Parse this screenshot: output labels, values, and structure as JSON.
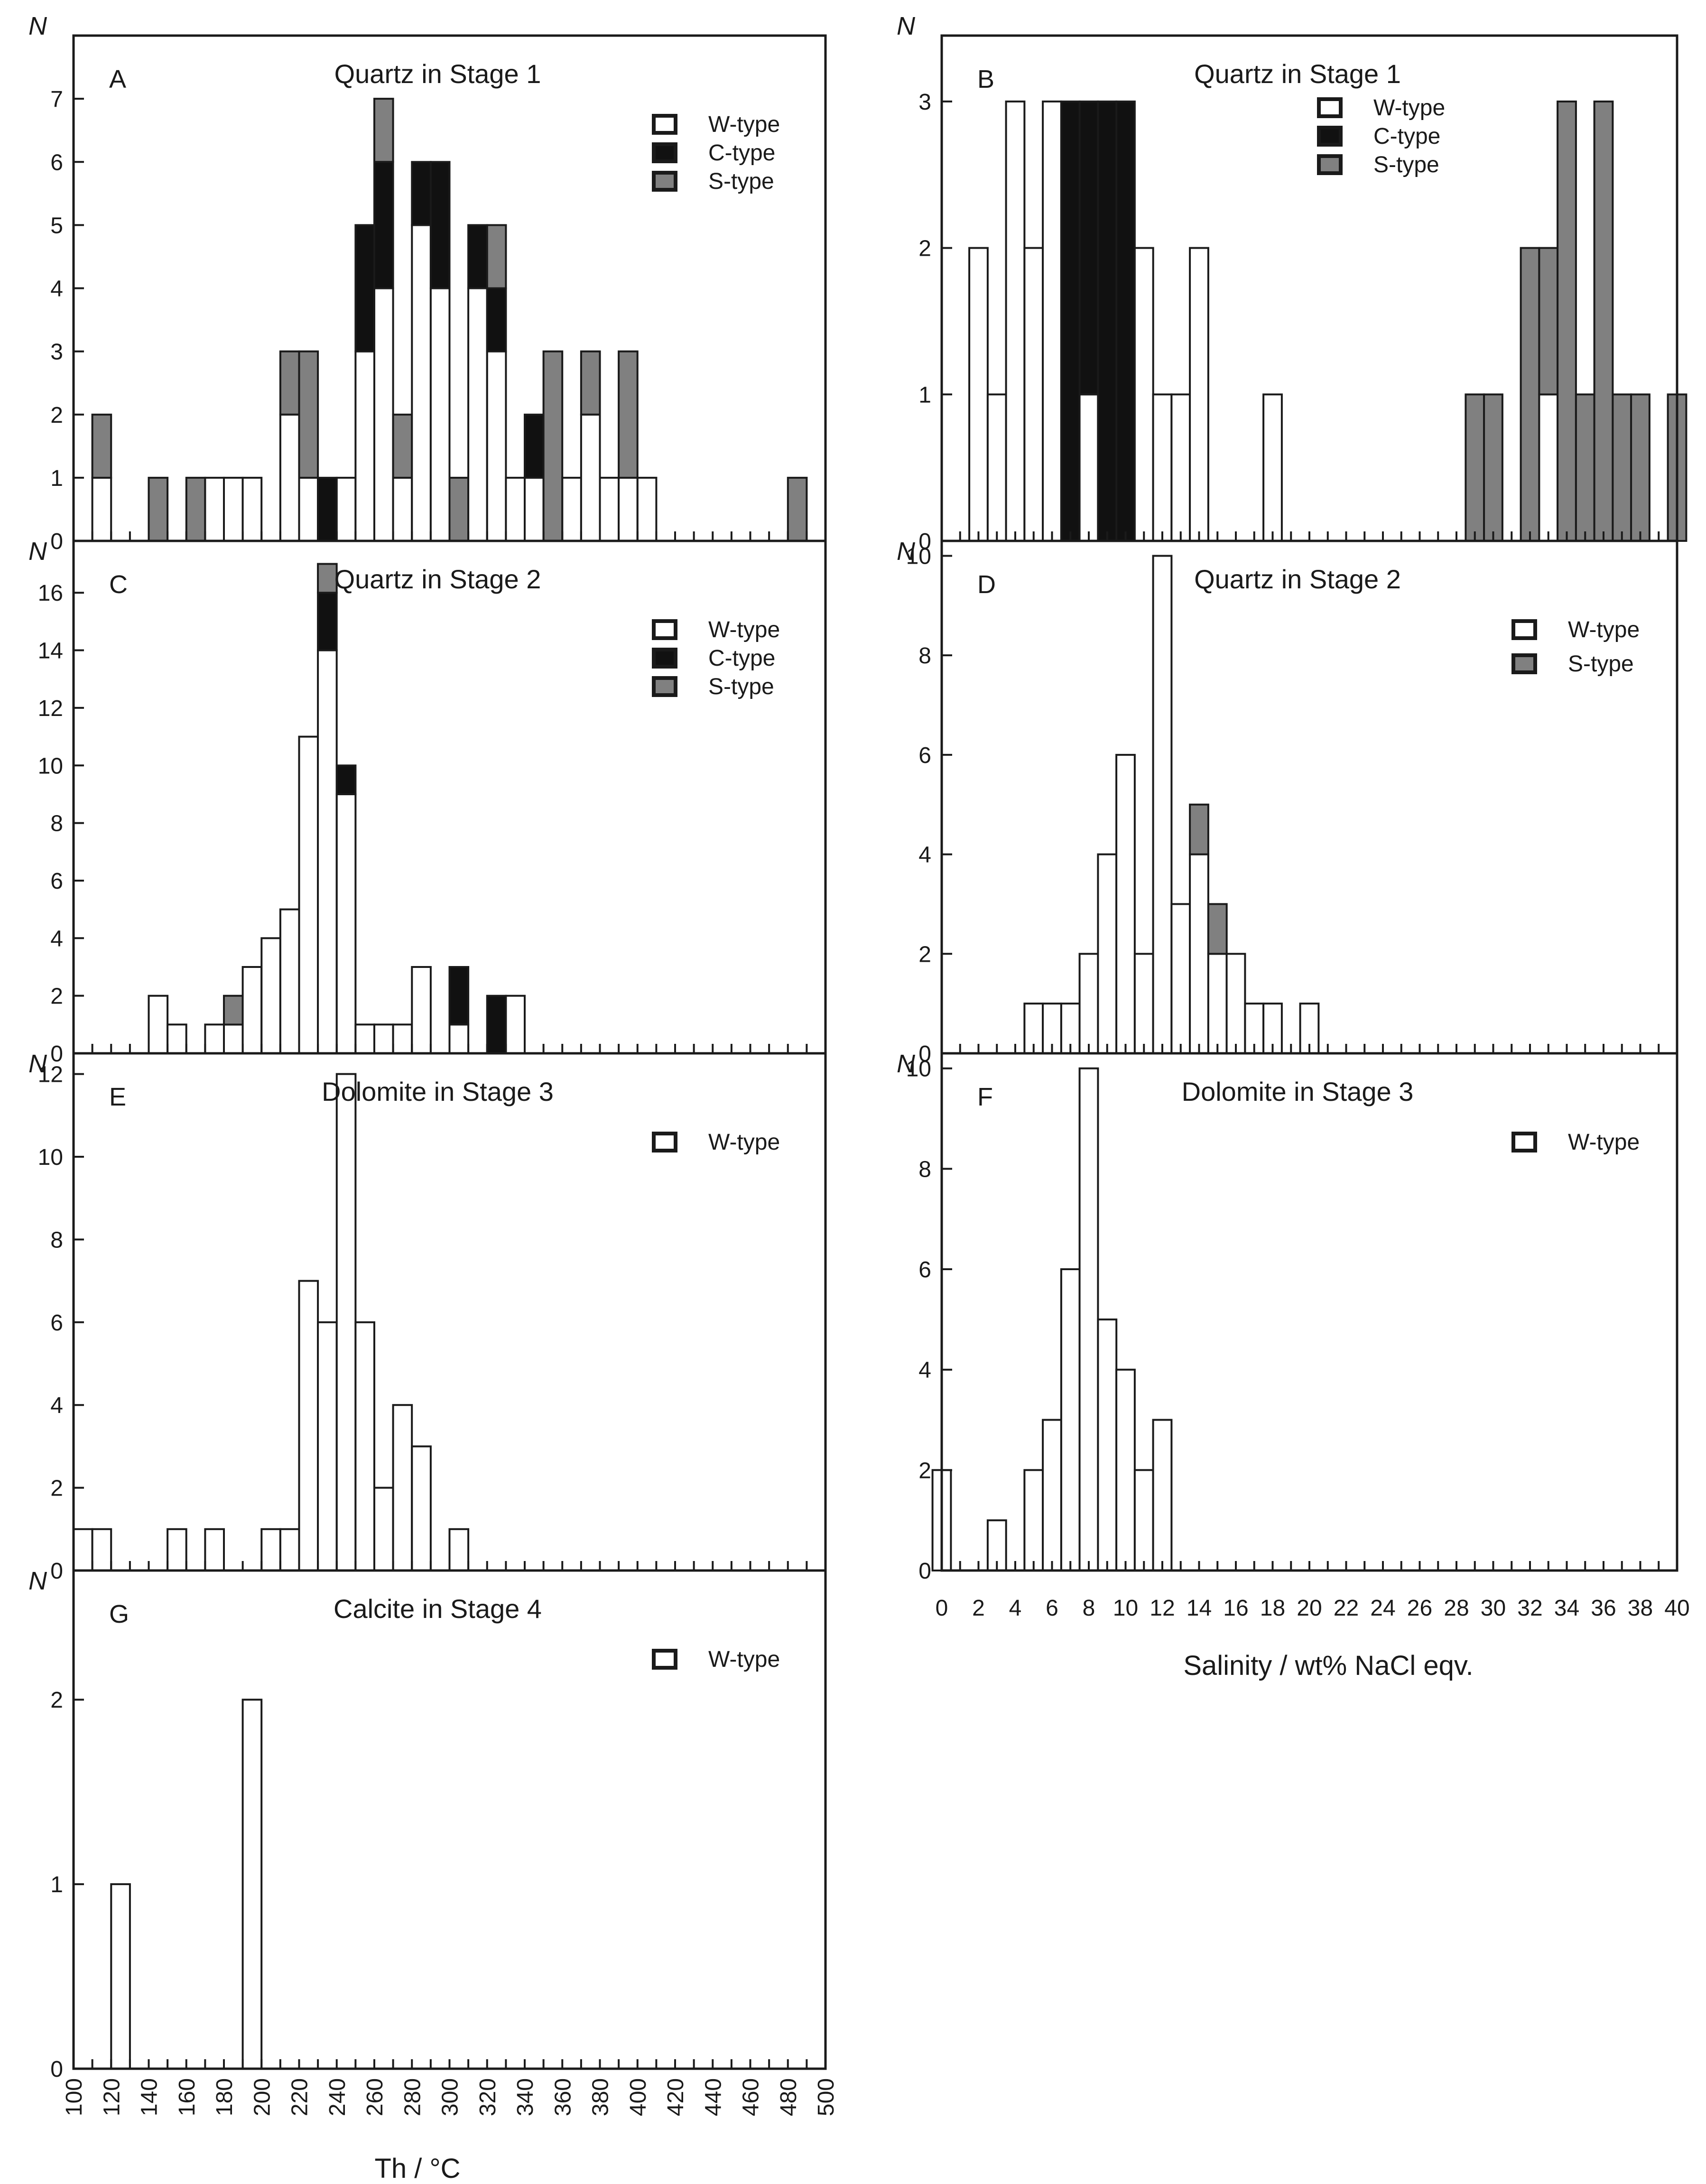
{
  "colors": {
    "W-type": "#ffffff",
    "C-type": "#111111",
    "S-type": "#808080",
    "axis": "#1a1a1a"
  },
  "figure": {
    "th_axis_label": "Th / °C",
    "salinity_axis_label": "Salinity / wt% NaCl eqv.",
    "y_symbol": "N"
  },
  "chart_data": [
    {
      "id": "A",
      "type": "bar",
      "stacked": true,
      "title": "Quartz in Stage 1",
      "xlabel": "Th / °C",
      "ylabel": "N",
      "xlim": [
        100,
        500
      ],
      "bin_width": 10,
      "ylim": [
        0,
        8
      ],
      "yticks": [
        0,
        1,
        2,
        3,
        4,
        5,
        6,
        7
      ],
      "legend": [
        "W-type",
        "C-type",
        "S-type"
      ],
      "bins": [
        {
          "x": 110,
          "W-type": 1,
          "C-type": 0,
          "S-type": 1
        },
        {
          "x": 140,
          "W-type": 0,
          "C-type": 0,
          "S-type": 1
        },
        {
          "x": 160,
          "W-type": 0,
          "C-type": 0,
          "S-type": 1
        },
        {
          "x": 170,
          "W-type": 1,
          "C-type": 0,
          "S-type": 0
        },
        {
          "x": 180,
          "W-type": 1,
          "C-type": 0,
          "S-type": 0
        },
        {
          "x": 190,
          "W-type": 1,
          "C-type": 0,
          "S-type": 0
        },
        {
          "x": 210,
          "W-type": 2,
          "C-type": 0,
          "S-type": 1
        },
        {
          "x": 220,
          "W-type": 1,
          "C-type": 0,
          "S-type": 2
        },
        {
          "x": 230,
          "W-type": 0,
          "C-type": 1,
          "S-type": 0
        },
        {
          "x": 240,
          "W-type": 1,
          "C-type": 0,
          "S-type": 0
        },
        {
          "x": 250,
          "W-type": 3,
          "C-type": 2,
          "S-type": 0
        },
        {
          "x": 260,
          "W-type": 4,
          "C-type": 2,
          "S-type": 1
        },
        {
          "x": 270,
          "W-type": 1,
          "C-type": 0,
          "S-type": 1
        },
        {
          "x": 280,
          "W-type": 5,
          "C-type": 1,
          "S-type": 0
        },
        {
          "x": 290,
          "W-type": 4,
          "C-type": 2,
          "S-type": 0
        },
        {
          "x": 300,
          "W-type": 0,
          "C-type": 0,
          "S-type": 1
        },
        {
          "x": 310,
          "W-type": 4,
          "C-type": 1,
          "S-type": 0
        },
        {
          "x": 320,
          "W-type": 3,
          "C-type": 1,
          "S-type": 1
        },
        {
          "x": 330,
          "W-type": 1,
          "C-type": 0,
          "S-type": 0
        },
        {
          "x": 340,
          "W-type": 1,
          "C-type": 1,
          "S-type": 0
        },
        {
          "x": 350,
          "W-type": 0,
          "C-type": 0,
          "S-type": 3
        },
        {
          "x": 360,
          "W-type": 1,
          "C-type": 0,
          "S-type": 0
        },
        {
          "x": 370,
          "W-type": 2,
          "C-type": 0,
          "S-type": 1
        },
        {
          "x": 380,
          "W-type": 1,
          "C-type": 0,
          "S-type": 0
        },
        {
          "x": 390,
          "W-type": 1,
          "C-type": 0,
          "S-type": 2
        },
        {
          "x": 400,
          "W-type": 1,
          "C-type": 0,
          "S-type": 0
        },
        {
          "x": 480,
          "W-type": 0,
          "C-type": 0,
          "S-type": 1
        }
      ]
    },
    {
      "id": "B",
      "type": "bar",
      "stacked": true,
      "title": "Quartz in Stage 1",
      "xlabel": "Salinity / wt% NaCl eqv.",
      "ylabel": "N",
      "xlim": [
        0,
        40
      ],
      "bin_width": 1,
      "ylim": [
        0,
        3.45
      ],
      "yticks": [
        0,
        1,
        2,
        3
      ],
      "legend": [
        "W-type",
        "C-type",
        "S-type"
      ],
      "bins": [
        {
          "x": 2,
          "W-type": 2,
          "C-type": 0,
          "S-type": 0
        },
        {
          "x": 3,
          "W-type": 1,
          "C-type": 0,
          "S-type": 0
        },
        {
          "x": 4,
          "W-type": 3,
          "C-type": 0,
          "S-type": 0
        },
        {
          "x": 5,
          "W-type": 2,
          "C-type": 0,
          "S-type": 0
        },
        {
          "x": 6,
          "W-type": 3,
          "C-type": 0,
          "S-type": 0
        },
        {
          "x": 7,
          "W-type": 0,
          "C-type": 3,
          "S-type": 0
        },
        {
          "x": 8,
          "W-type": 1,
          "C-type": 2,
          "S-type": 0
        },
        {
          "x": 9,
          "W-type": 0,
          "C-type": 3,
          "S-type": 0
        },
        {
          "x": 10,
          "W-type": 0,
          "C-type": 3,
          "S-type": 0
        },
        {
          "x": 11,
          "W-type": 2,
          "C-type": 0,
          "S-type": 0
        },
        {
          "x": 12,
          "W-type": 1,
          "C-type": 0,
          "S-type": 0
        },
        {
          "x": 13,
          "W-type": 1,
          "C-type": 0,
          "S-type": 0
        },
        {
          "x": 14,
          "W-type": 2,
          "C-type": 0,
          "S-type": 0
        },
        {
          "x": 18,
          "W-type": 1,
          "C-type": 0,
          "S-type": 0
        },
        {
          "x": 29,
          "W-type": 0,
          "C-type": 0,
          "S-type": 1
        },
        {
          "x": 30,
          "W-type": 0,
          "C-type": 0,
          "S-type": 1
        },
        {
          "x": 32,
          "W-type": 0,
          "C-type": 0,
          "S-type": 2
        },
        {
          "x": 33,
          "W-type": 1,
          "C-type": 0,
          "S-type": 1
        },
        {
          "x": 34,
          "W-type": 0,
          "C-type": 0,
          "S-type": 3
        },
        {
          "x": 35,
          "W-type": 0,
          "C-type": 0,
          "S-type": 1
        },
        {
          "x": 36,
          "W-type": 0,
          "C-type": 0,
          "S-type": 3
        },
        {
          "x": 37,
          "W-type": 0,
          "C-type": 0,
          "S-type": 1
        },
        {
          "x": 38,
          "W-type": 0,
          "C-type": 0,
          "S-type": 1
        },
        {
          "x": 40,
          "W-type": 0,
          "C-type": 0,
          "S-type": 1
        }
      ]
    },
    {
      "id": "C",
      "type": "bar",
      "stacked": true,
      "title": "Quartz in Stage 2",
      "xlabel": "Th / °C",
      "ylabel": "N",
      "xlim": [
        100,
        500
      ],
      "bin_width": 10,
      "ylim": [
        0,
        17.8
      ],
      "yticks": [
        0,
        2,
        4,
        6,
        8,
        10,
        12,
        14,
        16
      ],
      "legend": [
        "W-type",
        "C-type",
        "S-type"
      ],
      "bins": [
        {
          "x": 140,
          "W-type": 2,
          "C-type": 0,
          "S-type": 0
        },
        {
          "x": 150,
          "W-type": 1,
          "C-type": 0,
          "S-type": 0
        },
        {
          "x": 170,
          "W-type": 1,
          "C-type": 0,
          "S-type": 0
        },
        {
          "x": 180,
          "W-type": 1,
          "C-type": 0,
          "S-type": 1
        },
        {
          "x": 190,
          "W-type": 3,
          "C-type": 0,
          "S-type": 0
        },
        {
          "x": 200,
          "W-type": 4,
          "C-type": 0,
          "S-type": 0
        },
        {
          "x": 210,
          "W-type": 5,
          "C-type": 0,
          "S-type": 0
        },
        {
          "x": 220,
          "W-type": 11,
          "C-type": 0,
          "S-type": 0
        },
        {
          "x": 230,
          "W-type": 14,
          "C-type": 2,
          "S-type": 1
        },
        {
          "x": 240,
          "W-type": 9,
          "C-type": 1,
          "S-type": 0
        },
        {
          "x": 250,
          "W-type": 1,
          "C-type": 0,
          "S-type": 0
        },
        {
          "x": 260,
          "W-type": 1,
          "C-type": 0,
          "S-type": 0
        },
        {
          "x": 270,
          "W-type": 1,
          "C-type": 0,
          "S-type": 0
        },
        {
          "x": 280,
          "W-type": 3,
          "C-type": 0,
          "S-type": 0
        },
        {
          "x": 300,
          "W-type": 1,
          "C-type": 2,
          "S-type": 0
        },
        {
          "x": 320,
          "W-type": 0,
          "C-type": 2,
          "S-type": 0
        },
        {
          "x": 330,
          "W-type": 2,
          "C-type": 0,
          "S-type": 0
        }
      ]
    },
    {
      "id": "D",
      "type": "bar",
      "stacked": true,
      "title": "Quartz in Stage 2",
      "xlabel": "Salinity / wt% NaCl eqv.",
      "ylabel": "N",
      "xlim": [
        0,
        40
      ],
      "bin_width": 1,
      "ylim": [
        0,
        10.3
      ],
      "yticks": [
        0,
        2,
        4,
        6,
        8,
        10
      ],
      "legend": [
        "W-type",
        "S-type"
      ],
      "bins": [
        {
          "x": 5,
          "W-type": 1,
          "S-type": 0
        },
        {
          "x": 6,
          "W-type": 1,
          "S-type": 0
        },
        {
          "x": 7,
          "W-type": 1,
          "S-type": 0
        },
        {
          "x": 8,
          "W-type": 2,
          "S-type": 0
        },
        {
          "x": 9,
          "W-type": 4,
          "S-type": 0
        },
        {
          "x": 10,
          "W-type": 6,
          "S-type": 0
        },
        {
          "x": 11,
          "W-type": 2,
          "S-type": 0
        },
        {
          "x": 12,
          "W-type": 10,
          "S-type": 0
        },
        {
          "x": 13,
          "W-type": 3,
          "S-type": 0
        },
        {
          "x": 14,
          "W-type": 4,
          "S-type": 1
        },
        {
          "x": 15,
          "W-type": 2,
          "S-type": 1
        },
        {
          "x": 16,
          "W-type": 2,
          "S-type": 0
        },
        {
          "x": 17,
          "W-type": 1,
          "S-type": 0
        },
        {
          "x": 18,
          "W-type": 1,
          "S-type": 0
        },
        {
          "x": 20,
          "W-type": 1,
          "S-type": 0
        }
      ]
    },
    {
      "id": "E",
      "type": "bar",
      "stacked": true,
      "title": "Dolomite in Stage 3",
      "xlabel": "Th / °C",
      "ylabel": "N",
      "xlim": [
        100,
        500
      ],
      "bin_width": 10,
      "ylim": [
        0,
        12.5
      ],
      "yticks": [
        0,
        2,
        4,
        6,
        8,
        10,
        12
      ],
      "legend": [
        "W-type"
      ],
      "bins": [
        {
          "x": 100,
          "W-type": 1
        },
        {
          "x": 110,
          "W-type": 1
        },
        {
          "x": 150,
          "W-type": 1
        },
        {
          "x": 170,
          "W-type": 1
        },
        {
          "x": 200,
          "W-type": 1
        },
        {
          "x": 210,
          "W-type": 1
        },
        {
          "x": 220,
          "W-type": 7
        },
        {
          "x": 230,
          "W-type": 6
        },
        {
          "x": 240,
          "W-type": 12
        },
        {
          "x": 250,
          "W-type": 6
        },
        {
          "x": 260,
          "W-type": 2
        },
        {
          "x": 270,
          "W-type": 4
        },
        {
          "x": 280,
          "W-type": 3
        },
        {
          "x": 300,
          "W-type": 1
        }
      ]
    },
    {
      "id": "F",
      "type": "bar",
      "stacked": true,
      "title": "Dolomite in Stage 3",
      "xlabel": "Salinity / wt% NaCl eqv.",
      "ylabel": "N",
      "xlim": [
        0,
        40
      ],
      "bin_width": 1,
      "ylim": [
        0,
        10.3
      ],
      "yticks": [
        0,
        2,
        4,
        6,
        8,
        10
      ],
      "legend": [
        "W-type"
      ],
      "bins": [
        {
          "x": 0,
          "W-type": 2
        },
        {
          "x": 3,
          "W-type": 1
        },
        {
          "x": 5,
          "W-type": 2
        },
        {
          "x": 6,
          "W-type": 3
        },
        {
          "x": 7,
          "W-type": 6
        },
        {
          "x": 8,
          "W-type": 10
        },
        {
          "x": 9,
          "W-type": 5
        },
        {
          "x": 10,
          "W-type": 4
        },
        {
          "x": 11,
          "W-type": 2
        },
        {
          "x": 12,
          "W-type": 3
        }
      ]
    },
    {
      "id": "G",
      "type": "bar",
      "stacked": true,
      "title": "Calcite in Stage 4",
      "xlabel": "Th / °C",
      "ylabel": "N",
      "xlim": [
        100,
        500
      ],
      "bin_width": 10,
      "ylim": [
        0,
        2.7
      ],
      "yticks": [
        0,
        1,
        2
      ],
      "legend": [
        "W-type"
      ],
      "bins": [
        {
          "x": 120,
          "W-type": 1
        },
        {
          "x": 190,
          "W-type": 2
        }
      ]
    }
  ],
  "x_ticks": {
    "th": [
      "100",
      "120",
      "140",
      "160",
      "180",
      "200",
      "220",
      "240",
      "260",
      "280",
      "300",
      "320",
      "340",
      "360",
      "380",
      "400",
      "420",
      "440",
      "460",
      "480",
      "500"
    ],
    "salinity": [
      "0",
      "2",
      "4",
      "6",
      "8",
      "10",
      "12",
      "14",
      "16",
      "18",
      "20",
      "22",
      "24",
      "26",
      "28",
      "30",
      "32",
      "34",
      "36",
      "38",
      "40"
    ]
  }
}
